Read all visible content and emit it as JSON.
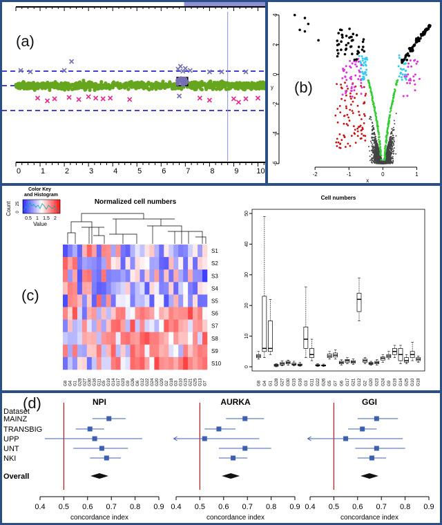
{
  "panels": {
    "a": {
      "label": "(a)"
    },
    "b": {
      "label": "(b)"
    },
    "c": {
      "label": "(c)"
    },
    "d": {
      "label": "(d)"
    }
  },
  "chart_data": [
    {
      "id": "a",
      "type": "scatter",
      "x_ticks": [
        "0",
        "1",
        "2",
        "3",
        "4",
        "5",
        "6",
        "7",
        "8",
        "9",
        "10"
      ],
      "xlim": [
        0,
        10.3
      ],
      "series": [
        {
          "kind": "bulk",
          "color": "#66a61e",
          "y_center": 0.0,
          "spread": 0.09
        },
        {
          "kind": "segment",
          "color": "#333366",
          "x_range": [
            6.65,
            7.1
          ],
          "y": 0.12
        },
        {
          "kind": "outliers_low",
          "color": "#e7298a",
          "points": [
            [
              0.9,
              -0.18
            ],
            [
              1.3,
              -0.22
            ],
            [
              1.6,
              -0.19
            ],
            [
              2.2,
              -0.17
            ],
            [
              2.6,
              -0.2
            ],
            [
              3.0,
              -0.16
            ],
            [
              3.3,
              -0.18
            ],
            [
              3.6,
              -0.19
            ],
            [
              3.9,
              -0.18
            ],
            [
              4.7,
              -0.2
            ],
            [
              7.6,
              -0.18
            ],
            [
              8.0,
              -0.21
            ],
            [
              9.0,
              -0.19
            ],
            [
              9.5,
              -0.19
            ],
            [
              10.0,
              -0.18
            ],
            [
              9.2,
              -0.24
            ]
          ]
        },
        {
          "kind": "outliers_high",
          "color": "#7570b3",
          "points": [
            [
              0.2,
              0.22
            ],
            [
              0.6,
              0.2
            ],
            [
              2.3,
              0.35
            ],
            [
              2.0,
              0.22
            ],
            [
              6.7,
              0.24
            ],
            [
              6.8,
              0.28
            ],
            [
              6.9,
              0.21
            ],
            [
              7.0,
              0.25
            ],
            [
              7.2,
              0.22
            ],
            [
              8.0,
              0.2
            ],
            [
              8.5,
              0.2
            ],
            [
              9.5,
              0.2
            ],
            [
              6.75,
              -0.15
            ]
          ]
        }
      ],
      "hlines": [
        {
          "y": 0.21,
          "color": "#0000cc",
          "style": "dashed"
        },
        {
          "y": 0.0,
          "color": "#0000cc",
          "style": "dashed"
        },
        {
          "y": -0.36,
          "color": "#0000cc",
          "style": "dashed"
        }
      ],
      "vline": {
        "x": 8.75,
        "color": "#8888ee"
      },
      "top_bar_highlight": [
        6.95,
        10.3
      ]
    },
    {
      "id": "b",
      "type": "scatter",
      "xlabel": "x",
      "ylabel": "y",
      "x_ticks": [
        "-2",
        "-1",
        "0",
        "1"
      ],
      "y_ticks": [
        "-6",
        "-4",
        "-2",
        "0",
        "2",
        "4"
      ],
      "xlim": [
        -2.9,
        1.5
      ],
      "ylim": [
        -6.1,
        4.5
      ],
      "groups": [
        {
          "name": "background",
          "color": "#444444"
        },
        {
          "name": "green",
          "color": "#33cc33"
        },
        {
          "name": "red",
          "color": "#cc1111"
        },
        {
          "name": "cyan",
          "color": "#33ccee"
        },
        {
          "name": "magenta",
          "color": "#dd33dd"
        },
        {
          "name": "black",
          "color": "#000000"
        }
      ]
    },
    {
      "id": "c-heatmap",
      "type": "heatmap",
      "title": "Normalized cell numbers",
      "key_title": "Color Key\nand Histogram",
      "key_title_line1": "Color Key",
      "key_title_line2": "and Histogram",
      "key_count_label": "Count",
      "key_count_ticks": [
        "0",
        "25"
      ],
      "key_value_label": "Value",
      "key_ticks": [
        "0.5",
        "1",
        "1.5",
        "2"
      ],
      "rows": [
        "S1",
        "S2",
        "S3",
        "S4",
        "S5",
        "S6",
        "S7",
        "S8",
        "S9",
        "S10"
      ],
      "columns": [
        "G8",
        "G4",
        "G1",
        "G28",
        "G27",
        "G30",
        "G16",
        "G11",
        "G5",
        "G19",
        "G14",
        "G17",
        "G23",
        "G9",
        "G26",
        "G6",
        "G12",
        "G22",
        "G24",
        "G20",
        "G29",
        "G2",
        "G18",
        "G3",
        "G10",
        "G15",
        "G21",
        "G25",
        "G13",
        "G7"
      ]
    },
    {
      "id": "c-box",
      "type": "box",
      "title": "Cell numbers",
      "y_ticks": [
        "0",
        "10",
        "20",
        "30",
        "40",
        "50"
      ],
      "ylim": [
        0,
        50
      ],
      "categories": [
        "G8",
        "G4",
        "G1",
        "G28",
        "G27",
        "G30",
        "G15",
        "G16",
        "G3",
        "G11",
        "G22",
        "G26",
        "G5",
        "G7",
        "G6",
        "G17",
        "G21",
        "G12",
        "G2",
        "G20",
        "G23",
        "G24",
        "G9",
        "G19",
        "G14",
        "G25",
        "G10",
        "G18"
      ],
      "boxes": [
        [
          2.5,
          3,
          3.5,
          4,
          5
        ],
        [
          3,
          5,
          6,
          23,
          49
        ],
        [
          4,
          5,
          6,
          15,
          22
        ],
        [
          0,
          0.2,
          0.5,
          0.8,
          1
        ],
        [
          0.3,
          0.6,
          1,
          1.4,
          2
        ],
        [
          0.5,
          1,
          1.4,
          1.8,
          2.2
        ],
        [
          0.3,
          0.6,
          0.8,
          1.2,
          1.8
        ],
        [
          0.2,
          0.4,
          0.6,
          0.9,
          1.4
        ],
        [
          3,
          6,
          9,
          13,
          26
        ],
        [
          2,
          3,
          4,
          6,
          9
        ],
        [
          0.1,
          0.3,
          0.5,
          0.7,
          1
        ],
        [
          0.1,
          0.3,
          0.4,
          0.6,
          0.9
        ],
        [
          2.5,
          3,
          3.5,
          4.2,
          5
        ],
        [
          2.5,
          3.2,
          3.8,
          4.5,
          5.5
        ],
        [
          0.6,
          1,
          1.4,
          1.8,
          2.3
        ],
        [
          1,
          1.4,
          2,
          2.4,
          3
        ],
        [
          0.8,
          1.2,
          1.6,
          2,
          2.6
        ],
        [
          15,
          18,
          22,
          24,
          29
        ],
        [
          1,
          1.5,
          2,
          2.5,
          3
        ],
        [
          0.5,
          0.8,
          1.1,
          1.4,
          1.8
        ],
        [
          0.6,
          1,
          1.4,
          1.8,
          2.4
        ],
        [
          1.5,
          2.2,
          2.8,
          3.2,
          4
        ],
        [
          2.5,
          3,
          3.5,
          4,
          5
        ],
        [
          3,
          4,
          5,
          6,
          7
        ],
        [
          1,
          2,
          4,
          6,
          7
        ],
        [
          1,
          1.5,
          2,
          3,
          4
        ],
        [
          2,
          3,
          4,
          5,
          8
        ],
        [
          1.5,
          2,
          2.5,
          3,
          3.5
        ]
      ]
    },
    {
      "id": "d",
      "type": "forest",
      "row_header": "Dataset",
      "rows": [
        "MAINZ",
        "TRANSBIG",
        "UPP",
        "UNT",
        "NKI"
      ],
      "overall_label": "Overall",
      "xlabel": "concordance index",
      "x_ticks": [
        "0.4",
        "0.5",
        "0.6",
        "0.7",
        "0.8",
        "0.9"
      ],
      "xlim": [
        0.4,
        0.9
      ],
      "reference": 0.5,
      "plots": [
        {
          "title": "NPI",
          "estimates": [
            [
              0.69,
              0.62,
              0.76
            ],
            [
              0.61,
              0.55,
              0.67
            ],
            [
              0.63,
              0.42,
              0.83
            ],
            [
              0.66,
              0.54,
              0.77
            ],
            [
              0.68,
              0.61,
              0.74
            ]
          ],
          "overall": 0.65
        },
        {
          "title": "AURKA",
          "estimates": [
            [
              0.69,
              0.61,
              0.77
            ],
            [
              0.58,
              0.52,
              0.65
            ],
            [
              0.52,
              0.29,
              0.75
            ],
            [
              0.69,
              0.58,
              0.8
            ],
            [
              0.64,
              0.58,
              0.7
            ]
          ],
          "overall": 0.63
        },
        {
          "title": "GGI",
          "estimates": [
            [
              0.68,
              0.6,
              0.77
            ],
            [
              0.62,
              0.56,
              0.68
            ],
            [
              0.55,
              0.29,
              0.79
            ],
            [
              0.68,
              0.59,
              0.8
            ],
            [
              0.66,
              0.6,
              0.72
            ]
          ],
          "overall": 0.65
        }
      ]
    }
  ]
}
